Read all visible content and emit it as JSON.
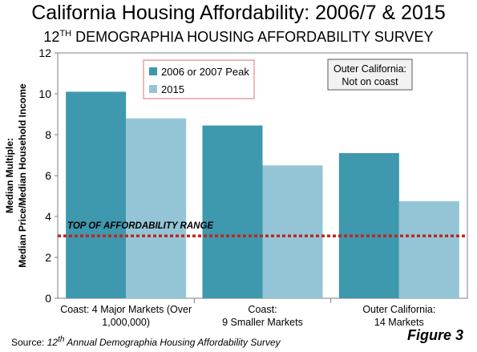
{
  "title": "California Housing Affordability: 2006/7 & 2015",
  "subtitle": {
    "prefix": "12",
    "sup": "TH",
    "rest": " DEMOGRAPHIA HOUSING AFFORDABILITY SURVEY"
  },
  "chart_data": {
    "type": "bar",
    "categories": [
      [
        "Coast: 4 Major Markets (Over",
        "1,000,000)"
      ],
      [
        "Coast:",
        "9 Smaller Markets"
      ],
      [
        "Outer California:",
        "14 Markets"
      ]
    ],
    "series": [
      {
        "name": "2006 or 2007 Peak",
        "values": [
          10.1,
          8.45,
          7.1
        ],
        "color": "#3e98ae"
      },
      {
        "name": "2015",
        "values": [
          8.8,
          6.5,
          4.75
        ],
        "color": "#93c5d6"
      }
    ],
    "ylabel": [
      "Median Multiple:",
      "Median Price/Median Household Income"
    ],
    "ylim": [
      0,
      12
    ],
    "yticks": [
      0,
      2,
      4,
      6,
      8,
      10,
      12
    ],
    "legend_position": "top-left",
    "grid": false,
    "reference_line": {
      "value": 3.05,
      "label": "TOP OF AFFORDABILITY RANGE",
      "color": "#c0261f"
    },
    "annotation": [
      "Outer California:",
      "Not on coast"
    ]
  },
  "footer": {
    "source_prefix": "Source: ",
    "source_sup": "th",
    "source_num": "12",
    "source_rest": " Annual Demographia Housing Affordability Survey",
    "figure_label": "Figure 3"
  }
}
